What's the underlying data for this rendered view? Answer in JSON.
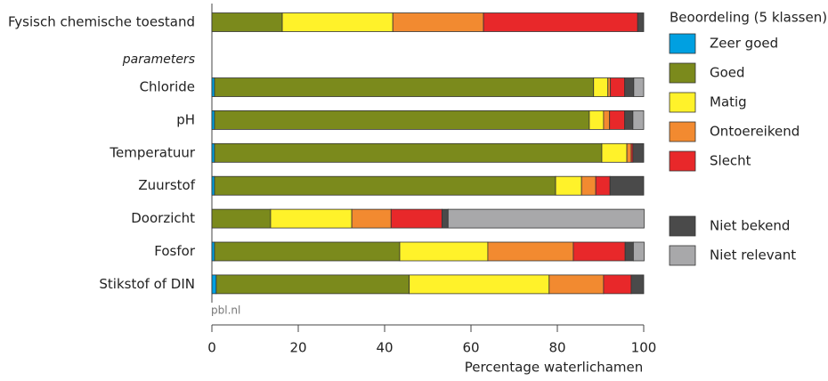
{
  "chart_data": {
    "type": "stacked-barh",
    "section_label": "parameters",
    "categories": [
      "Fysisch chemische toestand",
      "Chloride",
      "pH",
      "Temperatuur",
      "Zuurstof",
      "Doorzicht",
      "Fosfor",
      "Stikstof of DIN"
    ],
    "series": [
      {
        "name": "Zeer goed",
        "color": "#00a0e1",
        "values": [
          0,
          0.6,
          0.6,
          0.6,
          0.6,
          0,
          0.6,
          1
        ]
      },
      {
        "name": "Goed",
        "color": "#7b8a1c",
        "values": [
          16.3,
          87.8,
          86.8,
          89.7,
          79,
          13.6,
          42.9,
          44.7
        ]
      },
      {
        "name": "Matig",
        "color": "#fff22a",
        "values": [
          25.6,
          3.3,
          3.3,
          5.8,
          6,
          18.8,
          20.4,
          32.4
        ]
      },
      {
        "name": "Ontoereikend",
        "color": "#f28a30",
        "values": [
          21,
          0.6,
          1.4,
          1,
          3.3,
          9.1,
          19.8,
          12.6
        ]
      },
      {
        "name": "Slecht",
        "color": "#e8282a",
        "values": [
          35.7,
          3.3,
          3.5,
          0.4,
          3.3,
          11.8,
          12,
          6.4
        ]
      },
      {
        "name": "Niet bekend",
        "color": "#4a4a4a",
        "values": [
          1.4,
          2.1,
          1.9,
          2.5,
          7.8,
          1.4,
          1.9,
          2.9
        ]
      },
      {
        "name": "Niet relevant",
        "color": "#a8a8aa",
        "values": [
          0,
          2.3,
          2.5,
          0,
          0,
          45.4,
          2.5,
          0
        ]
      }
    ],
    "legend_title": "Beoordeling (5 klassen)",
    "source": "pbl.nl",
    "xlabel": "Percentage waterlichamen",
    "xlim": [
      0,
      100
    ],
    "xticks": [
      0,
      20,
      40,
      60,
      80,
      100
    ]
  }
}
